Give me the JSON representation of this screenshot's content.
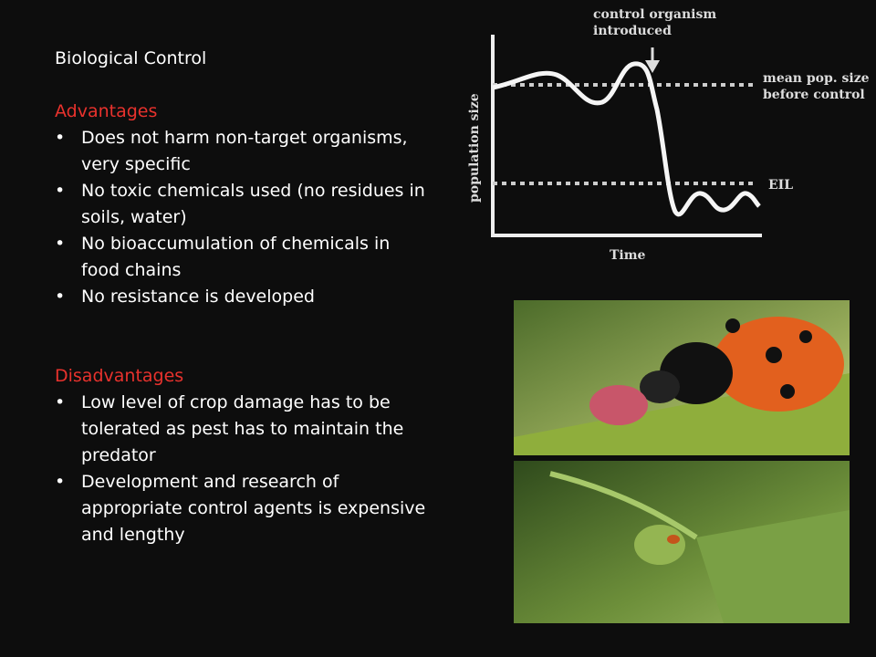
{
  "slide": {
    "title": "Biological Control",
    "advantages": {
      "heading": "Advantages",
      "items": [
        "Does not harm non-target organisms, very specific",
        "No toxic chemicals used (no residues in soils, water)",
        "No bioaccumulation of chemicals in food chains",
        "No resistance is developed"
      ]
    },
    "disadvantages": {
      "heading": "Disadvantages",
      "items": [
        "Low level of crop damage has to be tolerated as pest has to maintain the predator",
        "Development and research of appropriate control agents is expensive and lengthy"
      ]
    },
    "diagram": {
      "arrow_label": [
        "control organism",
        "introduced"
      ],
      "mean_label": [
        "mean pop. size",
        "before control"
      ],
      "eil_label": "EIL",
      "y_axis_label": "population size",
      "x_axis_label": "Time"
    }
  }
}
